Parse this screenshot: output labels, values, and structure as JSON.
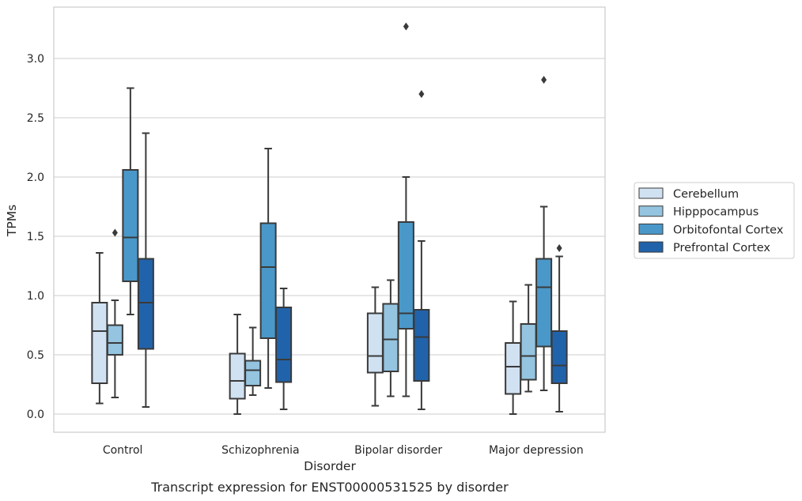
{
  "chart_data": {
    "type": "box",
    "title": "",
    "caption": "Transcript expression for ENST00000531525 by disorder",
    "xlabel": "Disorder",
    "ylabel": "TPMs",
    "ylim": [
      -0.15,
      3.45
    ],
    "yticks": [
      "0.0",
      "0.5",
      "1.0",
      "1.5",
      "2.0",
      "2.5",
      "3.0"
    ],
    "grid": "horizontal",
    "legend_position": "right",
    "categories": [
      "Control",
      "Schizophrenia",
      "Bipolar disorder",
      "Major depression"
    ],
    "series": [
      {
        "name": "Cerebellum",
        "color": "#d0e1f2",
        "boxes": [
          {
            "whislo": 0.09,
            "q1": 0.26,
            "med": 0.7,
            "q3": 0.94,
            "whishi": 1.36,
            "fliers": []
          },
          {
            "whislo": 0.0,
            "q1": 0.13,
            "med": 0.28,
            "q3": 0.51,
            "whishi": 0.84,
            "fliers": []
          },
          {
            "whislo": 0.07,
            "q1": 0.35,
            "med": 0.49,
            "q3": 0.85,
            "whishi": 1.07,
            "fliers": []
          },
          {
            "whislo": 0.0,
            "q1": 0.17,
            "med": 0.4,
            "q3": 0.6,
            "whishi": 0.95,
            "fliers": []
          }
        ]
      },
      {
        "name": "Hipppocampus",
        "color": "#94c4df",
        "boxes": [
          {
            "whislo": 0.14,
            "q1": 0.5,
            "med": 0.6,
            "q3": 0.75,
            "whishi": 0.96,
            "fliers": [
              1.53
            ]
          },
          {
            "whislo": 0.16,
            "q1": 0.24,
            "med": 0.37,
            "q3": 0.45,
            "whishi": 0.73,
            "fliers": []
          },
          {
            "whislo": 0.15,
            "q1": 0.36,
            "med": 0.63,
            "q3": 0.93,
            "whishi": 1.13,
            "fliers": []
          },
          {
            "whislo": 0.19,
            "q1": 0.29,
            "med": 0.49,
            "q3": 0.76,
            "whishi": 1.09,
            "fliers": []
          }
        ]
      },
      {
        "name": "Orbitofontal Cortex",
        "color": "#4a98c9",
        "boxes": [
          {
            "whislo": 0.84,
            "q1": 1.12,
            "med": 1.49,
            "q3": 2.06,
            "whishi": 2.75,
            "fliers": []
          },
          {
            "whislo": 0.22,
            "q1": 0.64,
            "med": 1.24,
            "q3": 1.61,
            "whishi": 2.24,
            "fliers": []
          },
          {
            "whislo": 0.15,
            "q1": 0.72,
            "med": 0.85,
            "q3": 1.62,
            "whishi": 2.0,
            "fliers": [
              3.27
            ]
          },
          {
            "whislo": 0.2,
            "q1": 0.57,
            "med": 1.07,
            "q3": 1.31,
            "whishi": 1.75,
            "fliers": [
              2.82
            ]
          }
        ]
      },
      {
        "name": "Prefrontal Cortex",
        "color": "#2163aa",
        "boxes": [
          {
            "whislo": 0.06,
            "q1": 0.55,
            "med": 0.94,
            "q3": 1.31,
            "whishi": 2.37,
            "fliers": []
          },
          {
            "whislo": 0.04,
            "q1": 0.27,
            "med": 0.46,
            "q3": 0.9,
            "whishi": 1.06,
            "fliers": []
          },
          {
            "whislo": 0.04,
            "q1": 0.28,
            "med": 0.65,
            "q3": 0.88,
            "whishi": 1.46,
            "fliers": [
              2.7
            ]
          },
          {
            "whislo": 0.02,
            "q1": 0.26,
            "med": 0.41,
            "q3": 0.7,
            "whishi": 1.33,
            "fliers": [
              1.4
            ]
          }
        ]
      }
    ]
  }
}
